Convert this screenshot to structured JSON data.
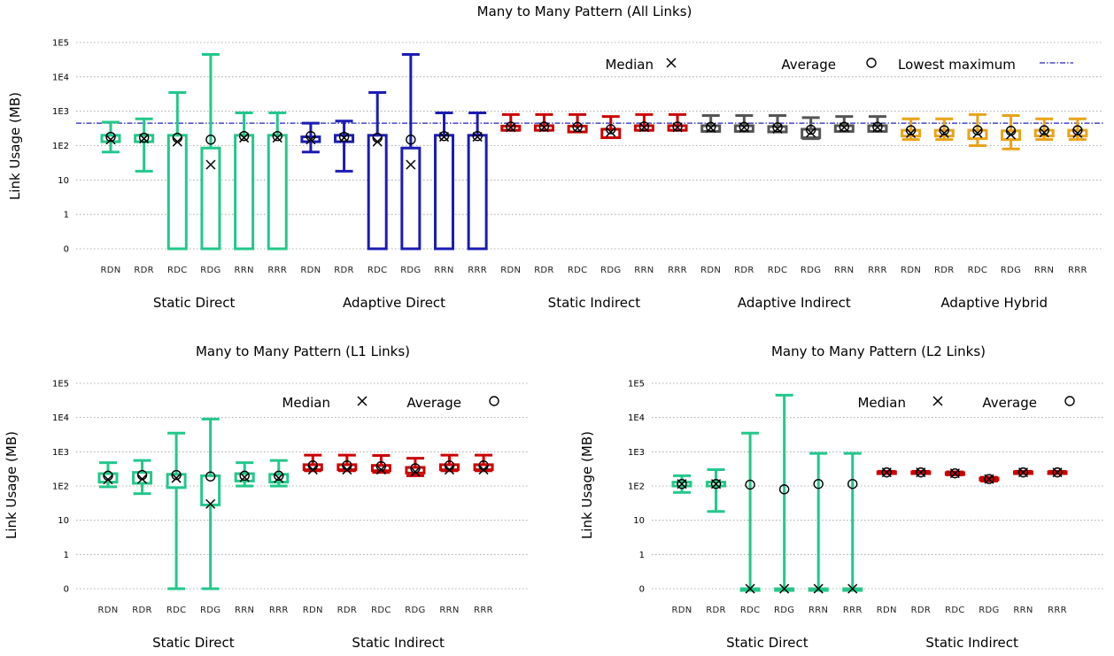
{
  "colors": {
    "static_direct": "#22c88a",
    "adaptive_direct": "#1c1cb4",
    "static_indirect": "#cc0000",
    "adaptive_indirect": "#555555",
    "adaptive_hybrid": "#e8a317",
    "lowest_max_line": "#2020c0"
  },
  "legend": {
    "median": "Median",
    "average": "Average",
    "lowest_maximum": "Lowest maximum"
  },
  "chart_data": [
    {
      "type": "boxplot",
      "title": "Many to Many Pattern (All Links)",
      "ylabel": "Link Usage (MB)",
      "yscale": "log",
      "yticks": [
        "0",
        "1",
        "10",
        "1E2",
        "1E3",
        "1E4",
        "1E5"
      ],
      "categories": [
        "RDN",
        "RDR",
        "RDC",
        "RDG",
        "RRN",
        "RRR",
        "RDN",
        "RDR",
        "RDC",
        "RDG",
        "RRN",
        "RRR",
        "RDN",
        "RDR",
        "RDC",
        "RDG",
        "RRN",
        "RRR",
        "RDN",
        "RDR",
        "RDC",
        "RDG",
        "RRN",
        "RRR",
        "RDN",
        "RDR",
        "RDC",
        "RDG",
        "RRN",
        "RRR"
      ],
      "groups": [
        {
          "name": "Static Direct",
          "color_key": "static_direct"
        },
        {
          "name": "Adaptive Direct",
          "color_key": "adaptive_direct"
        },
        {
          "name": "Static Indirect",
          "color_key": "static_indirect"
        },
        {
          "name": "Adaptive Indirect",
          "color_key": "adaptive_indirect"
        },
        {
          "name": "Adaptive Hybrid",
          "color_key": "adaptive_hybrid"
        }
      ],
      "lowest_maximum": 450,
      "boxes": [
        {
          "min": 65,
          "q1": 130,
          "median": 150,
          "q3": 200,
          "max": 480,
          "avg": 180
        },
        {
          "min": 18,
          "q1": 130,
          "median": 160,
          "q3": 200,
          "max": 600,
          "avg": 170
        },
        {
          "min": 0,
          "q1": 0,
          "median": 130,
          "q3": 200,
          "max": 3500,
          "avg": 170
        },
        {
          "min": 0,
          "q1": 0,
          "median": 28,
          "q3": 85,
          "max": 45000,
          "avg": 150
        },
        {
          "min": 0,
          "q1": 0,
          "median": 170,
          "q3": 200,
          "max": 900,
          "avg": 190
        },
        {
          "min": 0,
          "q1": 0,
          "median": 170,
          "q3": 200,
          "max": 900,
          "avg": 190
        },
        {
          "min": 65,
          "q1": 130,
          "median": 150,
          "q3": 180,
          "max": 450,
          "avg": 190
        },
        {
          "min": 18,
          "q1": 130,
          "median": 170,
          "q3": 200,
          "max": 520,
          "avg": 180
        },
        {
          "min": 0,
          "q1": 0,
          "median": 130,
          "q3": 200,
          "max": 3500,
          "avg": 170
        },
        {
          "min": 0,
          "q1": 0,
          "median": 28,
          "q3": 85,
          "max": 45000,
          "avg": 150
        },
        {
          "min": 0,
          "q1": 0,
          "median": 180,
          "q3": 200,
          "max": 900,
          "avg": 190
        },
        {
          "min": 0,
          "q1": 0,
          "median": 180,
          "q3": 200,
          "max": 900,
          "avg": 190
        },
        {
          "min": 280,
          "q1": 280,
          "median": 340,
          "q3": 370,
          "max": 800,
          "avg": 360
        },
        {
          "min": 280,
          "q1": 280,
          "median": 340,
          "q3": 380,
          "max": 800,
          "avg": 360
        },
        {
          "min": 250,
          "q1": 250,
          "median": 320,
          "q3": 370,
          "max": 800,
          "avg": 350
        },
        {
          "min": 170,
          "q1": 170,
          "median": 250,
          "q3": 300,
          "max": 700,
          "avg": 300
        },
        {
          "min": 280,
          "q1": 280,
          "median": 340,
          "q3": 380,
          "max": 800,
          "avg": 360
        },
        {
          "min": 280,
          "q1": 280,
          "median": 340,
          "q3": 380,
          "max": 800,
          "avg": 360
        },
        {
          "min": 260,
          "q1": 260,
          "median": 330,
          "q3": 380,
          "max": 750,
          "avg": 350
        },
        {
          "min": 260,
          "q1": 260,
          "median": 340,
          "q3": 380,
          "max": 750,
          "avg": 350
        },
        {
          "min": 250,
          "q1": 250,
          "median": 310,
          "q3": 360,
          "max": 750,
          "avg": 340
        },
        {
          "min": 160,
          "q1": 170,
          "median": 240,
          "q3": 300,
          "max": 650,
          "avg": 290
        },
        {
          "min": 260,
          "q1": 260,
          "median": 340,
          "q3": 380,
          "max": 700,
          "avg": 350
        },
        {
          "min": 260,
          "q1": 260,
          "median": 340,
          "q3": 380,
          "max": 700,
          "avg": 350
        },
        {
          "min": 150,
          "q1": 190,
          "median": 230,
          "q3": 280,
          "max": 600,
          "avg": 280
        },
        {
          "min": 150,
          "q1": 190,
          "median": 230,
          "q3": 280,
          "max": 600,
          "avg": 280
        },
        {
          "min": 100,
          "q1": 160,
          "median": 230,
          "q3": 280,
          "max": 800,
          "avg": 280
        },
        {
          "min": 80,
          "q1": 150,
          "median": 210,
          "q3": 270,
          "max": 750,
          "avg": 270
        },
        {
          "min": 150,
          "q1": 190,
          "median": 240,
          "q3": 280,
          "max": 600,
          "avg": 280
        },
        {
          "min": 150,
          "q1": 190,
          "median": 230,
          "q3": 280,
          "max": 600,
          "avg": 280
        }
      ]
    },
    {
      "type": "boxplot",
      "title": "Many to Many Pattern (L1 Links)",
      "ylabel": "Link Usage (MB)",
      "yscale": "log",
      "yticks": [
        "0",
        "1",
        "10",
        "1E2",
        "1E3",
        "1E4",
        "1E5"
      ],
      "categories": [
        "RDN",
        "RDR",
        "RDC",
        "RDG",
        "RRN",
        "RRR",
        "RDN",
        "RDR",
        "RDC",
        "RDG",
        "RRN",
        "RRR"
      ],
      "groups": [
        {
          "name": "Static Direct",
          "color_key": "static_direct"
        },
        {
          "name": "Static Indirect",
          "color_key": "static_indirect"
        }
      ],
      "boxes": [
        {
          "min": 95,
          "q1": 130,
          "median": 155,
          "q3": 230,
          "max": 480,
          "avg": 200
        },
        {
          "min": 60,
          "q1": 120,
          "median": 160,
          "q3": 250,
          "max": 560,
          "avg": 210
        },
        {
          "min": 0,
          "q1": 90,
          "median": 170,
          "q3": 220,
          "max": 3500,
          "avg": 210
        },
        {
          "min": 0,
          "q1": 28,
          "median": 30,
          "q3": 200,
          "max": 9000,
          "avg": 190
        },
        {
          "min": 100,
          "q1": 140,
          "median": 180,
          "q3": 230,
          "max": 480,
          "avg": 200
        },
        {
          "min": 100,
          "q1": 130,
          "median": 170,
          "q3": 220,
          "max": 560,
          "avg": 200
        },
        {
          "min": 280,
          "q1": 300,
          "median": 300,
          "q3": 420,
          "max": 800,
          "avg": 400
        },
        {
          "min": 280,
          "q1": 300,
          "median": 300,
          "q3": 420,
          "max": 800,
          "avg": 400
        },
        {
          "min": 250,
          "q1": 280,
          "median": 300,
          "q3": 400,
          "max": 780,
          "avg": 380
        },
        {
          "min": 200,
          "q1": 240,
          "median": 260,
          "q3": 350,
          "max": 650,
          "avg": 330
        },
        {
          "min": 280,
          "q1": 300,
          "median": 300,
          "q3": 420,
          "max": 800,
          "avg": 400
        },
        {
          "min": 280,
          "q1": 300,
          "median": 300,
          "q3": 420,
          "max": 800,
          "avg": 400
        }
      ]
    },
    {
      "type": "boxplot",
      "title": "Many to Many Pattern (L2 Links)",
      "ylabel": "Link Usage (MB)",
      "yscale": "log",
      "yticks": [
        "0",
        "1",
        "10",
        "1E2",
        "1E3",
        "1E4",
        "1E5"
      ],
      "categories": [
        "RDN",
        "RDR",
        "RDC",
        "RDG",
        "RRN",
        "RRR",
        "RDN",
        "RDR",
        "RDC",
        "RDG",
        "RRN",
        "RRR"
      ],
      "groups": [
        {
          "name": "Static Direct",
          "color_key": "static_direct"
        },
        {
          "name": "Static Indirect",
          "color_key": "static_indirect"
        }
      ],
      "boxes": [
        {
          "min": 65,
          "q1": 100,
          "median": 115,
          "q3": 130,
          "max": 200,
          "avg": 115
        },
        {
          "min": 18,
          "q1": 100,
          "median": 115,
          "q3": 130,
          "max": 300,
          "avg": 115
        },
        {
          "min": 0,
          "q1": 0,
          "median": 0,
          "q3": 0,
          "max": 3500,
          "avg": 110
        },
        {
          "min": 0,
          "q1": 0,
          "median": 0,
          "q3": 0,
          "max": 45000,
          "avg": 80
        },
        {
          "min": 0,
          "q1": 0,
          "median": 0,
          "q3": 0,
          "max": 900,
          "avg": 115
        },
        {
          "min": 0,
          "q1": 0,
          "median": 0,
          "q3": 0,
          "max": 900,
          "avg": 115
        },
        {
          "min": 230,
          "q1": 240,
          "median": 250,
          "q3": 260,
          "max": 270,
          "avg": 250
        },
        {
          "min": 230,
          "q1": 240,
          "median": 250,
          "q3": 260,
          "max": 270,
          "avg": 250
        },
        {
          "min": 210,
          "q1": 220,
          "median": 235,
          "q3": 245,
          "max": 260,
          "avg": 235
        },
        {
          "min": 140,
          "q1": 150,
          "median": 160,
          "q3": 170,
          "max": 180,
          "avg": 160
        },
        {
          "min": 230,
          "q1": 240,
          "median": 250,
          "q3": 260,
          "max": 270,
          "avg": 250
        },
        {
          "min": 230,
          "q1": 240,
          "median": 250,
          "q3": 260,
          "max": 270,
          "avg": 250
        }
      ]
    }
  ]
}
